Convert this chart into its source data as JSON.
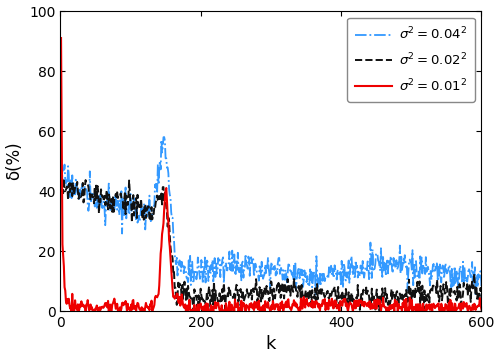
{
  "title": "",
  "xlabel": "k",
  "ylabel": "δ(%)",
  "xlim": [
    0,
    600
  ],
  "ylim": [
    0,
    100
  ],
  "xticks": [
    0,
    200,
    400,
    600
  ],
  "yticks": [
    0,
    20,
    40,
    60,
    80,
    100
  ],
  "legend_entries": [
    {
      "label": "$\\sigma^2=0.04^2$",
      "color": "#3399FF",
      "linestyle": "dashdot",
      "linewidth": 1.3
    },
    {
      "label": "$\\sigma^2=0.02^2$",
      "color": "#111111",
      "linestyle": "dashed",
      "linewidth": 1.4
    },
    {
      "label": "$\\sigma^2=0.01^2$",
      "color": "#EE0000",
      "linestyle": "solid",
      "linewidth": 1.5
    }
  ],
  "seed": 7
}
